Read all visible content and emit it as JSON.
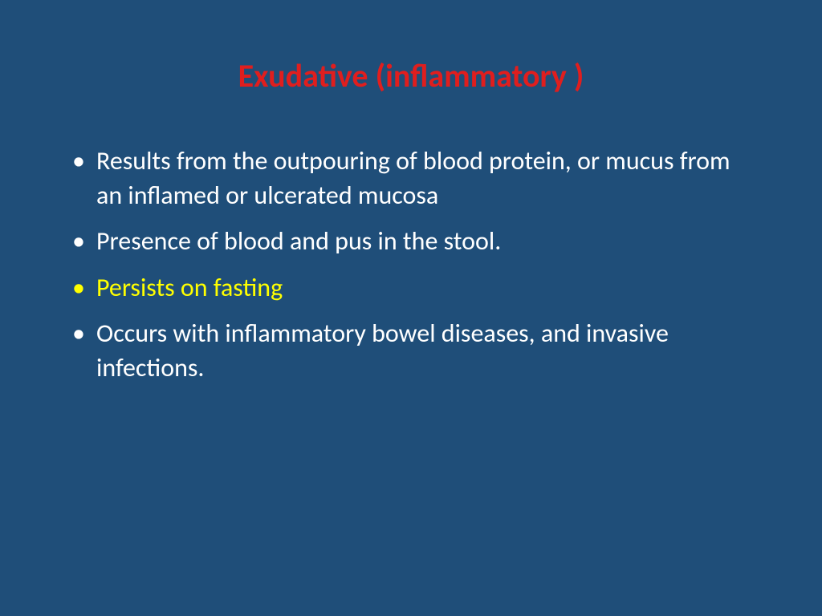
{
  "slide": {
    "background_color": "#1f4e79",
    "title": {
      "text": "Exudative (inflammatory )",
      "color": "#e01e1e",
      "fontsize": 40,
      "fontweight": "bold"
    },
    "bullets": [
      {
        "text": "Results from the outpouring of blood protein, or mucus from an inflamed or ulcerated mucosa",
        "color": "#ffffff",
        "bullet_color": "#ffffff",
        "fontsize": 32
      },
      {
        "text": "Presence of blood and pus in the stool.",
        "color": "#ffffff",
        "bullet_color": "#ffffff",
        "fontsize": 32
      },
      {
        "text": "Persists on fasting",
        "color": "#ffff00",
        "bullet_color": "#ffff00",
        "fontsize": 32
      },
      {
        "text": "Occurs  with inflammatory bowel diseases, and invasive  infections.",
        "color": "#ffffff",
        "bullet_color": "#ffffff",
        "fontsize": 32
      }
    ]
  }
}
